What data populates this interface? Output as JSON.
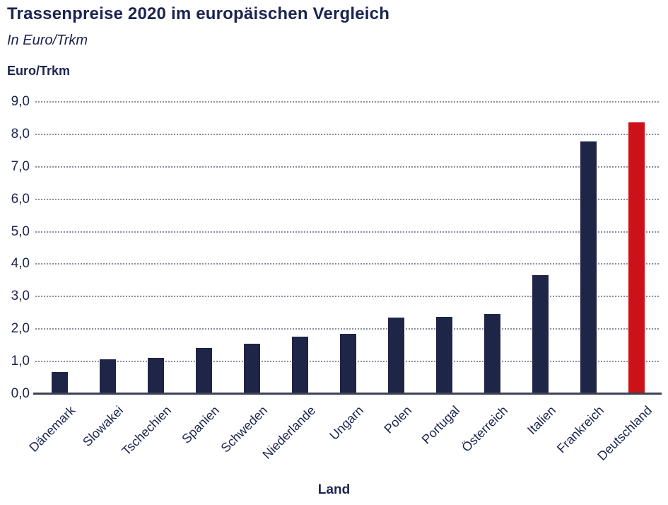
{
  "page": {
    "title": "Trassenpreise 2020 im europäischen Vergleich",
    "subtitle": "In Euro/Trkm",
    "y_axis_unit": "Euro/Trkm",
    "x_axis_label": "Land"
  },
  "colors": {
    "text": "#1B2450",
    "bar": "#1F2547",
    "highlight": "#CD1118",
    "gridline": "#8A8DA1",
    "axis_line": "#3D4357",
    "background": "#FFFFFF"
  },
  "chart_data": {
    "type": "bar",
    "title": "Trassenpreise 2020 im europäischen Vergleich",
    "subtitle": "In Euro/Trkm",
    "xlabel": "Land",
    "ylabel": "Euro/Trkm",
    "ylim": [
      0,
      9
    ],
    "grid": "horizontal-dotted",
    "legend": "none",
    "y_ticks": [
      "0,0",
      "1,0",
      "2,0",
      "3,0",
      "4,0",
      "5,0",
      "6,0",
      "7,0",
      "8,0",
      "9,0"
    ],
    "categories": [
      "Dänemark",
      "Slowakei",
      "Tschechien",
      "Spanien",
      "Schweden",
      "Niederlande",
      "Ungarn",
      "Polen",
      "Portugal",
      "Österreich",
      "Italien",
      "Frankreich",
      "Deutschland"
    ],
    "values": [
      0.68,
      1.06,
      1.12,
      1.41,
      1.54,
      1.77,
      1.86,
      2.35,
      2.37,
      2.47,
      3.66,
      7.79,
      8.36
    ],
    "highlight_category": "Deutschland",
    "highlight_index": 12
  }
}
